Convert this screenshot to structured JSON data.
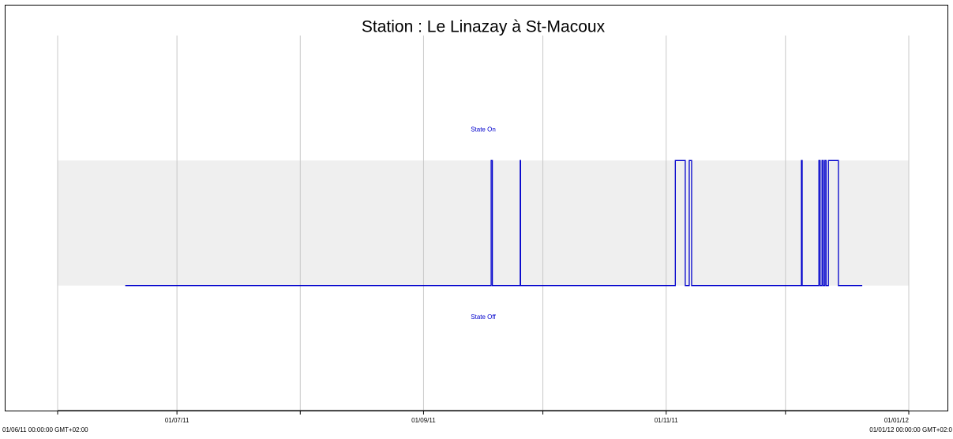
{
  "chart_data": {
    "type": "step",
    "title": "Station : Le Linazay à St-Macoux",
    "states": [
      "State Off",
      "State On"
    ],
    "x": [
      17,
      109,
      109.3,
      116.3,
      116.4,
      155.3,
      157.8,
      158.8,
      159.4,
      187,
      187.2,
      191.4,
      191.7,
      192.2,
      192.5,
      192.9,
      193.2,
      193.8,
      196.3,
      202.3
    ],
    "values": [
      0,
      1,
      0,
      1,
      0,
      1,
      0,
      1,
      0,
      1,
      0,
      1,
      0,
      1,
      0,
      1,
      0,
      1,
      0,
      0
    ],
    "color": "#0000cc",
    "band_color": "#efefef",
    "xlim": [
      0,
      214
    ],
    "xlim_labels": [
      "01/06/11 00:00:00 GMT+02:00",
      "01/01/12 00:00:00 GMT+02:0"
    ],
    "xticks": [
      {
        "value": 30,
        "label": "01/07/11"
      },
      {
        "value": 92,
        "label": "01/09/11"
      },
      {
        "value": 153,
        "label": "01/11/11"
      },
      {
        "value": 214,
        "label": "01/01/12"
      }
    ],
    "xticks_minor": [
      0,
      61,
      122,
      183
    ],
    "ylim": [
      -1,
      2
    ],
    "grid": true
  }
}
